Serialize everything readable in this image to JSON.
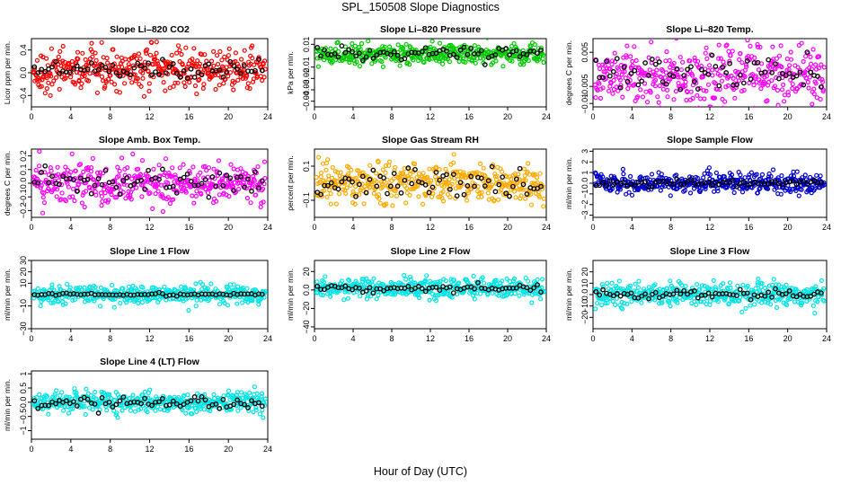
{
  "title": "SPL_150508  Slope Diagnostics",
  "xlabel": "Hour of Day (UTC)",
  "chart_data": [
    {
      "type": "scatter",
      "title": "Slope Li–820 CO2",
      "ylabel": "Licor ppm per min.",
      "color": "#ff0000",
      "xlim": [
        0,
        24
      ],
      "xticks": [
        0,
        4,
        8,
        12,
        16,
        20,
        24
      ],
      "ylim": [
        -0.6,
        0.6
      ],
      "yticks": [
        -0.4,
        0.0,
        0.4
      ],
      "series_hf": {
        "mean": 0.05,
        "spread": 0.18
      },
      "series_avg": {
        "mean": 0.07,
        "spread": 0.08
      }
    },
    {
      "type": "scatter",
      "title": "Slope Li–820 Pressure",
      "ylabel": "kPa per min.",
      "color": "#00cc00",
      "xlim": [
        0,
        24
      ],
      "xticks": [
        0,
        4,
        8,
        12,
        16,
        20,
        24
      ],
      "ylim": [
        -0.045,
        0.015
      ],
      "yticks": [
        -0.04,
        -0.03,
        -0.02,
        -0.01,
        0.01
      ],
      "series_hf": {
        "mean": 0.001,
        "spread": 0.004
      },
      "series_avg": {
        "mean": 0.002,
        "spread": 0.003
      }
    },
    {
      "type": "scatter",
      "title": "Slope Li–820 Temp.",
      "ylabel": "degrees C per min.",
      "color": "#ff00ff",
      "xlim": [
        0,
        24
      ],
      "xticks": [
        0,
        4,
        8,
        12,
        16,
        20,
        24
      ],
      "ylim": [
        -0.011,
        0.009
      ],
      "yticks": [
        -0.01,
        -0.005,
        0.005
      ],
      "series_hf": {
        "mean": -0.0015,
        "spread": 0.0045
      },
      "series_avg": {
        "mean": -0.001,
        "spread": 0.0025
      }
    },
    {
      "type": "scatter",
      "title": "Slope Amb. Box Temp.",
      "ylabel": "degrees C per min.",
      "color": "#ff00ff",
      "xlim": [
        0,
        24
      ],
      "xticks": [
        0,
        4,
        8,
        12,
        16,
        20,
        24
      ],
      "ylim": [
        -0.25,
        0.25
      ],
      "yticks": [
        -0.2,
        -0.1,
        0.0,
        0.1,
        0.2
      ],
      "series_hf": {
        "mean": 0.0,
        "spread": 0.08
      },
      "series_avg": {
        "mean": 0.01,
        "spread": 0.05
      }
    },
    {
      "type": "scatter",
      "title": "Slope Gas Stream RH",
      "ylabel": "percent per min.",
      "color": "#ffaa00",
      "xlim": [
        0,
        24
      ],
      "xticks": [
        0,
        4,
        8,
        12,
        16,
        20,
        24
      ],
      "ylim": [
        -0.2,
        0.2
      ],
      "yticks": [
        -0.1,
        0.1
      ],
      "series_hf": {
        "mean": 0.0,
        "spread": 0.055
      },
      "series_avg": {
        "mean": 0.0,
        "spread": 0.04
      }
    },
    {
      "type": "scatter",
      "title": "Slope Sample Flow",
      "ylabel": "ml/min per min.",
      "color": "#0000cc",
      "xlim": [
        0,
        24
      ],
      "xticks": [
        0,
        4,
        8,
        12,
        16,
        20,
        24
      ],
      "ylim": [
        -3.2,
        3.2
      ],
      "yticks": [
        -3,
        -2,
        -1,
        0,
        1,
        2,
        3
      ],
      "series_hf": {
        "mean": 0.0,
        "spread": 0.45
      },
      "series_avg": {
        "mean": 0.0,
        "spread": 0.15
      }
    },
    {
      "type": "scatter",
      "title": "Slope Line 1 Flow",
      "ylabel": "ml/min per min.",
      "color": "#00e5e5",
      "xlim": [
        0,
        24
      ],
      "xticks": [
        0,
        4,
        8,
        12,
        16,
        20,
        24
      ],
      "ylim": [
        -30,
        30
      ],
      "yticks": [
        -30,
        -10,
        10,
        20,
        30
      ],
      "series_hf": {
        "mean": 0.0,
        "spread": 4
      },
      "series_avg": {
        "mean": 0.0,
        "spread": 0.5
      }
    },
    {
      "type": "scatter",
      "title": "Slope Line 2 Flow",
      "ylabel": "ml/min per min.",
      "color": "#00e5e5",
      "xlim": [
        0,
        24
      ],
      "xticks": [
        0,
        4,
        8,
        12,
        16,
        20,
        24
      ],
      "ylim": [
        -42,
        32
      ],
      "yticks": [
        -40,
        -20,
        0,
        20
      ],
      "series_hf": {
        "mean": 2,
        "spread": 5
      },
      "series_avg": {
        "mean": 2,
        "spread": 2
      }
    },
    {
      "type": "scatter",
      "title": "Slope Line 3 Flow",
      "ylabel": "ml/min per min.",
      "color": "#00e5e5",
      "xlim": [
        0,
        24
      ],
      "xticks": [
        0,
        4,
        8,
        12,
        16,
        20,
        24
      ],
      "ylim": [
        -30,
        30
      ],
      "yticks": [
        -20,
        -10,
        0,
        10,
        20
      ],
      "series_hf": {
        "mean": 0.0,
        "spread": 5
      },
      "series_avg": {
        "mean": 0.0,
        "spread": 2
      }
    },
    {
      "type": "scatter",
      "title": "Slope Line 4 (LT) Flow",
      "ylabel": "ml/min per min.",
      "color": "#00e5e5",
      "xlim": [
        0,
        24
      ],
      "xticks": [
        0,
        4,
        8,
        12,
        16,
        20,
        24
      ],
      "ylim": [
        -1.3,
        1.1
      ],
      "yticks": [
        -1.0,
        -0.5,
        0.0,
        0.5,
        1.0
      ],
      "series_hf": {
        "mean": 0.0,
        "spread": 0.18
      },
      "series_avg": {
        "mean": 0.0,
        "spread": 0.12
      }
    }
  ]
}
